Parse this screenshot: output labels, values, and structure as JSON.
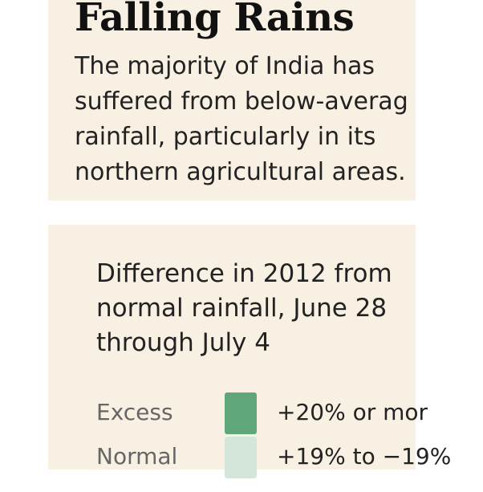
{
  "header": {
    "title": "Falling Rains",
    "dek": "The majority of India has suffered from below-averag rainfall, particularly in its northern agricultural areas."
  },
  "key": {
    "title": "Difference in 2012 from normal rainfall, June 28 through July 4",
    "items": [
      {
        "label": "Excess",
        "range": "+20% or mor",
        "color": "#5fa77a"
      },
      {
        "label": "Normal",
        "range": "+19% to −19%",
        "color": "#d4e6d9"
      }
    ]
  },
  "colors": {
    "panel_background": "#f7f0e3",
    "page_background": "#ffffff"
  }
}
